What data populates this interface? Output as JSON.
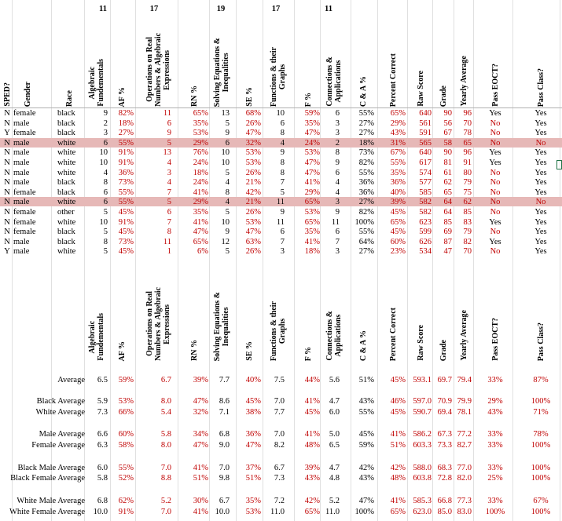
{
  "top_counts": [
    {
      "col": "af",
      "value": "11"
    },
    {
      "col": "ops",
      "value": "17"
    },
    {
      "col": "solve",
      "value": "19"
    },
    {
      "col": "func",
      "value": "17"
    },
    {
      "col": "conn",
      "value": "11"
    }
  ],
  "headers": {
    "sped": "SPED?",
    "gender": "Gender",
    "race": "Race",
    "alg": "Algebraic\nFundementals",
    "afp": "AF %",
    "ops": "Operations on Real\nNumbers & Algebraic\nExpressions",
    "rnp": "RN %",
    "solve": "Solving Equations &\nInequalities",
    "sep": "SE %",
    "func": "Functions & their\nGraphs",
    "fp": "F %",
    "conn": "Connections &\nApplications",
    "cap": "C & A %",
    "pct": "Percent Correct",
    "raw": "Raw Score",
    "grade": "Grade",
    "yearly": "Yearly Average",
    "eoct": "Pass EOCT?",
    "pclass": "Pass Class?"
  },
  "rows": [
    {
      "sped": "N",
      "gender": "female",
      "race": "black",
      "af": "9",
      "afp": "82%",
      "rn": "11",
      "rnp": "65%",
      "se": "13",
      "sep": "68%",
      "f": "10",
      "fp": "59%",
      "ca": "6",
      "cap": "55%",
      "pct": "65%",
      "raw": "640",
      "grade": "90",
      "yearly": "96",
      "eoct": "Yes",
      "pclass": "Yes",
      "hl": false
    },
    {
      "sped": "N",
      "gender": "male",
      "race": "black",
      "af": "2",
      "afp": "18%",
      "rn": "6",
      "rnp": "35%",
      "se": "5",
      "sep": "26%",
      "f": "6",
      "fp": "35%",
      "ca": "3",
      "cap": "27%",
      "pct": "29%",
      "raw": "561",
      "grade": "56",
      "yearly": "70",
      "eoct": "No",
      "pclass": "Yes",
      "hl": false
    },
    {
      "sped": "Y",
      "gender": "female",
      "race": "black",
      "af": "3",
      "afp": "27%",
      "rn": "9",
      "rnp": "53%",
      "se": "9",
      "sep": "47%",
      "f": "8",
      "fp": "47%",
      "ca": "3",
      "cap": "27%",
      "pct": "43%",
      "raw": "591",
      "grade": "67",
      "yearly": "78",
      "eoct": "No",
      "pclass": "Yes",
      "hl": false
    },
    {
      "sped": "N",
      "gender": "male",
      "race": "white",
      "af": "6",
      "afp": "55%",
      "rn": "5",
      "rnp": "29%",
      "se": "6",
      "sep": "32%",
      "f": "4",
      "fp": "24%",
      "ca": "2",
      "cap": "18%",
      "pct": "31%",
      "raw": "565",
      "grade": "58",
      "yearly": "65",
      "eoct": "No",
      "pclass": "No",
      "hl": true
    },
    {
      "sped": "N",
      "gender": "male",
      "race": "white",
      "af": "10",
      "afp": "91%",
      "rn": "13",
      "rnp": "76%",
      "se": "10",
      "sep": "53%",
      "f": "9",
      "fp": "53%",
      "ca": "8",
      "cap": "73%",
      "pct": "67%",
      "raw": "640",
      "grade": "90",
      "yearly": "96",
      "eoct": "Yes",
      "pclass": "Yes",
      "hl": false
    },
    {
      "sped": "N",
      "gender": "male",
      "race": "white",
      "af": "10",
      "afp": "91%",
      "rn": "4",
      "rnp": "24%",
      "se": "10",
      "sep": "53%",
      "f": "8",
      "fp": "47%",
      "ca": "9",
      "cap": "82%",
      "pct": "55%",
      "raw": "617",
      "grade": "81",
      "yearly": "91",
      "eoct": "Yes",
      "pclass": "Yes",
      "hl": false
    },
    {
      "sped": "N",
      "gender": "male",
      "race": "white",
      "af": "4",
      "afp": "36%",
      "rn": "3",
      "rnp": "18%",
      "se": "5",
      "sep": "26%",
      "f": "8",
      "fp": "47%",
      "ca": "6",
      "cap": "55%",
      "pct": "35%",
      "raw": "574",
      "grade": "61",
      "yearly": "80",
      "eoct": "No",
      "pclass": "Yes",
      "hl": false
    },
    {
      "sped": "N",
      "gender": "male",
      "race": "black",
      "af": "8",
      "afp": "73%",
      "rn": "4",
      "rnp": "24%",
      "se": "4",
      "sep": "21%",
      "f": "7",
      "fp": "41%",
      "ca": "4",
      "cap": "36%",
      "pct": "36%",
      "raw": "577",
      "grade": "62",
      "yearly": "79",
      "eoct": "No",
      "pclass": "Yes",
      "hl": false
    },
    {
      "sped": "N",
      "gender": "female",
      "race": "black",
      "af": "6",
      "afp": "55%",
      "rn": "7",
      "rnp": "41%",
      "se": "8",
      "sep": "42%",
      "f": "5",
      "fp": "29%",
      "ca": "4",
      "cap": "36%",
      "pct": "40%",
      "raw": "585",
      "grade": "65",
      "yearly": "75",
      "eoct": "No",
      "pclass": "Yes",
      "hl": false
    },
    {
      "sped": "N",
      "gender": "male",
      "race": "white",
      "af": "6",
      "afp": "55%",
      "rn": "5",
      "rnp": "29%",
      "se": "4",
      "sep": "21%",
      "f": "11",
      "fp": "65%",
      "ca": "3",
      "cap": "27%",
      "pct": "39%",
      "raw": "582",
      "grade": "64",
      "yearly": "62",
      "eoct": "No",
      "pclass": "No",
      "hl": true
    },
    {
      "sped": "N",
      "gender": "female",
      "race": "other",
      "af": "5",
      "afp": "45%",
      "rn": "6",
      "rnp": "35%",
      "se": "5",
      "sep": "26%",
      "f": "9",
      "fp": "53%",
      "ca": "9",
      "cap": "82%",
      "pct": "45%",
      "raw": "582",
      "grade": "64",
      "yearly": "85",
      "eoct": "No",
      "pclass": "Yes",
      "hl": false
    },
    {
      "sped": "N",
      "gender": "female",
      "race": "white",
      "af": "10",
      "afp": "91%",
      "rn": "7",
      "rnp": "41%",
      "se": "10",
      "sep": "53%",
      "f": "11",
      "fp": "65%",
      "ca": "11",
      "cap": "100%",
      "pct": "65%",
      "raw": "623",
      "grade": "85",
      "yearly": "83",
      "eoct": "Yes",
      "pclass": "Yes",
      "hl": false
    },
    {
      "sped": "N",
      "gender": "female",
      "race": "black",
      "af": "5",
      "afp": "45%",
      "rn": "8",
      "rnp": "47%",
      "se": "9",
      "sep": "47%",
      "f": "6",
      "fp": "35%",
      "ca": "6",
      "cap": "55%",
      "pct": "45%",
      "raw": "599",
      "grade": "69",
      "yearly": "79",
      "eoct": "No",
      "pclass": "Yes",
      "hl": false
    },
    {
      "sped": "N",
      "gender": "male",
      "race": "black",
      "af": "8",
      "afp": "73%",
      "rn": "11",
      "rnp": "65%",
      "se": "12",
      "sep": "63%",
      "f": "7",
      "fp": "41%",
      "ca": "7",
      "cap": "64%",
      "pct": "60%",
      "raw": "626",
      "grade": "87",
      "yearly": "82",
      "eoct": "Yes",
      "pclass": "Yes",
      "hl": false
    },
    {
      "sped": "Y",
      "gender": "male",
      "race": "white",
      "af": "5",
      "afp": "45%",
      "rn": "1",
      "rnp": "6%",
      "se": "5",
      "sep": "26%",
      "f": "3",
      "fp": "18%",
      "ca": "3",
      "cap": "27%",
      "pct": "23%",
      "raw": "534",
      "grade": "47",
      "yearly": "70",
      "eoct": "No",
      "pclass": "Yes",
      "hl": false
    }
  ],
  "averages": [
    {
      "label": "Average",
      "af": "6.5",
      "afp": "59%",
      "rn": "6.7",
      "rnp": "39%",
      "se": "7.7",
      "sep": "40%",
      "f": "7.5",
      "fp": "44%",
      "ca": "5.6",
      "cap": "51%",
      "pct": "45%",
      "raw": "593.1",
      "grade": "69.7",
      "yearly": "79.4",
      "eoct": "33%",
      "pclass": "87%"
    },
    {
      "label": "Black Average",
      "af": "5.9",
      "afp": "53%",
      "rn": "8.0",
      "rnp": "47%",
      "se": "8.6",
      "sep": "45%",
      "f": "7.0",
      "fp": "41%",
      "ca": "4.7",
      "cap": "43%",
      "pct": "46%",
      "raw": "597.0",
      "grade": "70.9",
      "yearly": "79.9",
      "eoct": "29%",
      "pclass": "100%"
    },
    {
      "label": "White Average",
      "af": "7.3",
      "afp": "66%",
      "rn": "5.4",
      "rnp": "32%",
      "se": "7.1",
      "sep": "38%",
      "f": "7.7",
      "fp": "45%",
      "ca": "6.0",
      "cap": "55%",
      "pct": "45%",
      "raw": "590.7",
      "grade": "69.4",
      "yearly": "78.1",
      "eoct": "43%",
      "pclass": "71%"
    },
    {
      "label": "Male Average",
      "af": "6.6",
      "afp": "60%",
      "rn": "5.8",
      "rnp": "34%",
      "se": "6.8",
      "sep": "36%",
      "f": "7.0",
      "fp": "41%",
      "ca": "5.0",
      "cap": "45%",
      "pct": "41%",
      "raw": "586.2",
      "grade": "67.3",
      "yearly": "77.2",
      "eoct": "33%",
      "pclass": "78%"
    },
    {
      "label": "Female Average",
      "af": "6.3",
      "afp": "58%",
      "rn": "8.0",
      "rnp": "47%",
      "se": "9.0",
      "sep": "47%",
      "f": "8.2",
      "fp": "48%",
      "ca": "6.5",
      "cap": "59%",
      "pct": "51%",
      "raw": "603.3",
      "grade": "73.3",
      "yearly": "82.7",
      "eoct": "33%",
      "pclass": "100%"
    },
    {
      "label": "Black Male Average",
      "af": "6.0",
      "afp": "55%",
      "rn": "7.0",
      "rnp": "41%",
      "se": "7.0",
      "sep": "37%",
      "f": "6.7",
      "fp": "39%",
      "ca": "4.7",
      "cap": "42%",
      "pct": "42%",
      "raw": "588.0",
      "grade": "68.3",
      "yearly": "77.0",
      "eoct": "33%",
      "pclass": "100%"
    },
    {
      "label": "Black Female Average",
      "af": "5.8",
      "afp": "52%",
      "rn": "8.8",
      "rnp": "51%",
      "se": "9.8",
      "sep": "51%",
      "f": "7.3",
      "fp": "43%",
      "ca": "4.8",
      "cap": "43%",
      "pct": "48%",
      "raw": "603.8",
      "grade": "72.8",
      "yearly": "82.0",
      "eoct": "25%",
      "pclass": "100%"
    },
    {
      "label": "White Male Average",
      "af": "6.8",
      "afp": "62%",
      "rn": "5.2",
      "rnp": "30%",
      "se": "6.7",
      "sep": "35%",
      "f": "7.2",
      "fp": "42%",
      "ca": "5.2",
      "cap": "47%",
      "pct": "41%",
      "raw": "585.3",
      "grade": "66.8",
      "yearly": "77.3",
      "eoct": "33%",
      "pclass": "67%"
    },
    {
      "label": "White Female Average",
      "af": "10.0",
      "afp": "91%",
      "rn": "7.0",
      "rnp": "41%",
      "se": "10.0",
      "sep": "53%",
      "f": "11.0",
      "fp": "65%",
      "ca": "11.0",
      "cap": "100%",
      "pct": "65%",
      "raw": "623.0",
      "grade": "85.0",
      "yearly": "83.0",
      "eoct": "100%",
      "pclass": "100%"
    }
  ],
  "colors": {
    "highlight": "#e6b8b7",
    "red_text": "#c00000",
    "grid": "#e0e0e0"
  }
}
